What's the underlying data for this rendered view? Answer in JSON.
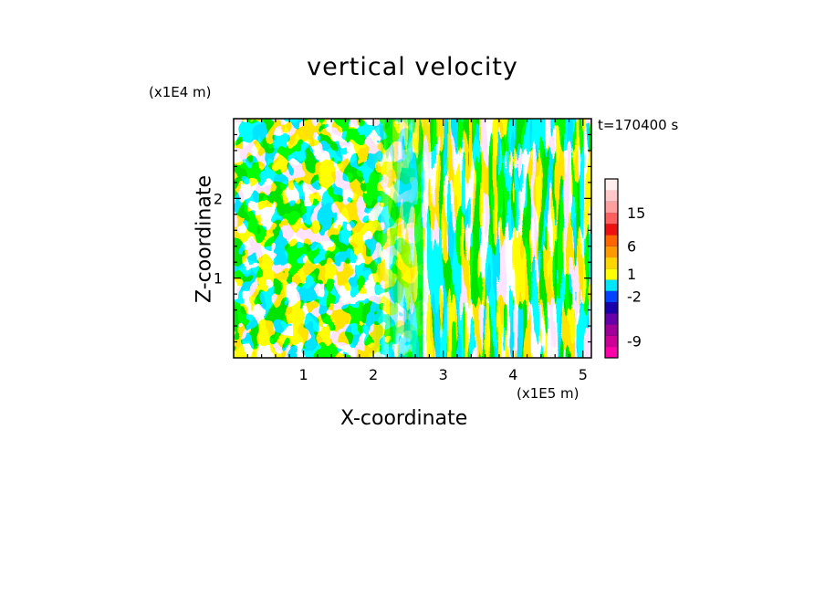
{
  "chart_data": {
    "type": "heatmap",
    "title": "vertical velocity",
    "xlabel": "X-coordinate",
    "ylabel": "Z-coordinate",
    "x_unit": "(x1E5 m)",
    "z_unit": "(x1E4 m)",
    "timestamp": "t=170400 s",
    "xlim": [
      0,
      5.12
    ],
    "ylim": [
      0,
      3.0
    ],
    "x_ticks": [
      1,
      2,
      3,
      4,
      5
    ],
    "x_tick_labels": [
      "1",
      "2",
      "3",
      "4",
      "5"
    ],
    "y_ticks": [
      1,
      2
    ],
    "y_tick_labels": [
      "1",
      "2"
    ],
    "colorbar": {
      "tick_labels": [
        "15",
        "6",
        "1",
        "-2",
        "-9"
      ],
      "bands": [
        {
          "color": "#ff00aa"
        },
        {
          "color": "#cc0099"
        },
        {
          "color": "#a00099"
        },
        {
          "color": "#6600aa"
        },
        {
          "color": "#1a00aa"
        },
        {
          "color": "#0044ff"
        },
        {
          "color": "#00e5ff"
        },
        {
          "color": "#ffff00"
        },
        {
          "color": "#ffd700"
        },
        {
          "color": "#ff9900"
        },
        {
          "color": "#ff6600"
        },
        {
          "color": "#ee1111"
        },
        {
          "color": "#ff6060"
        },
        {
          "color": "#ff9f9f"
        },
        {
          "color": "#ffc8c8"
        },
        {
          "color": "#ffeeee"
        }
      ]
    },
    "field_colors": {
      "positive": "#ffff00",
      "negative": "#00e5ff"
    },
    "grid": false
  }
}
